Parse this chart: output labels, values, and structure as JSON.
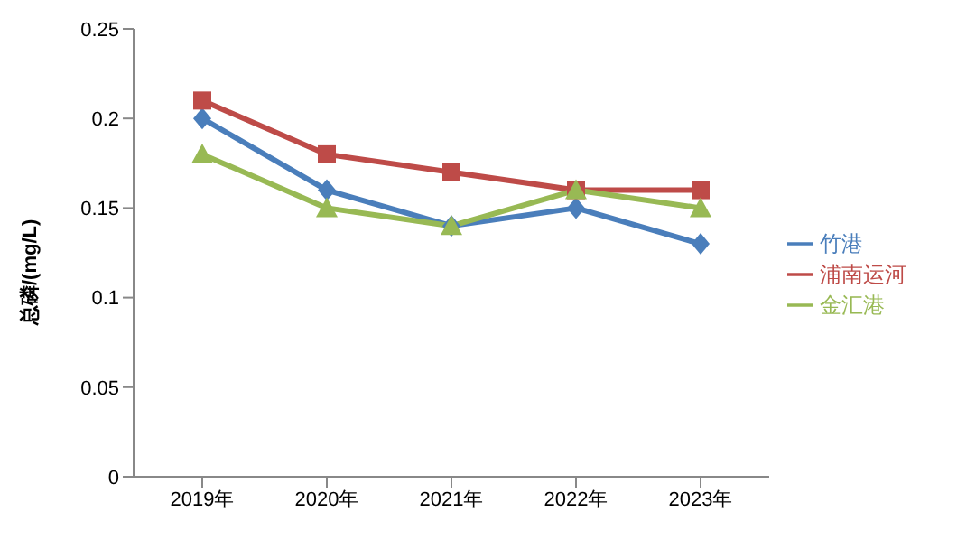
{
  "chart_data": {
    "type": "line",
    "ylabel": "总磷/(mg/L)",
    "categories": [
      "2019年",
      "2020年",
      "2021年",
      "2022年",
      "2023年"
    ],
    "series": [
      {
        "name": "竹港",
        "color": "#4a7ebb",
        "marker": "diamond",
        "values": [
          0.2,
          0.16,
          0.14,
          0.15,
          0.13
        ]
      },
      {
        "name": "浦南运河",
        "color": "#be4b48",
        "marker": "square",
        "values": [
          0.21,
          0.18,
          0.17,
          0.16,
          0.16
        ]
      },
      {
        "name": "金汇港",
        "color": "#98b954",
        "marker": "triangle",
        "values": [
          0.18,
          0.15,
          0.14,
          0.16,
          0.15
        ]
      }
    ],
    "ylim": [
      0,
      0.25
    ],
    "yticks": [
      0,
      0.05,
      0.1,
      0.15,
      0.2,
      0.25
    ],
    "grid": false,
    "legend": "right"
  }
}
